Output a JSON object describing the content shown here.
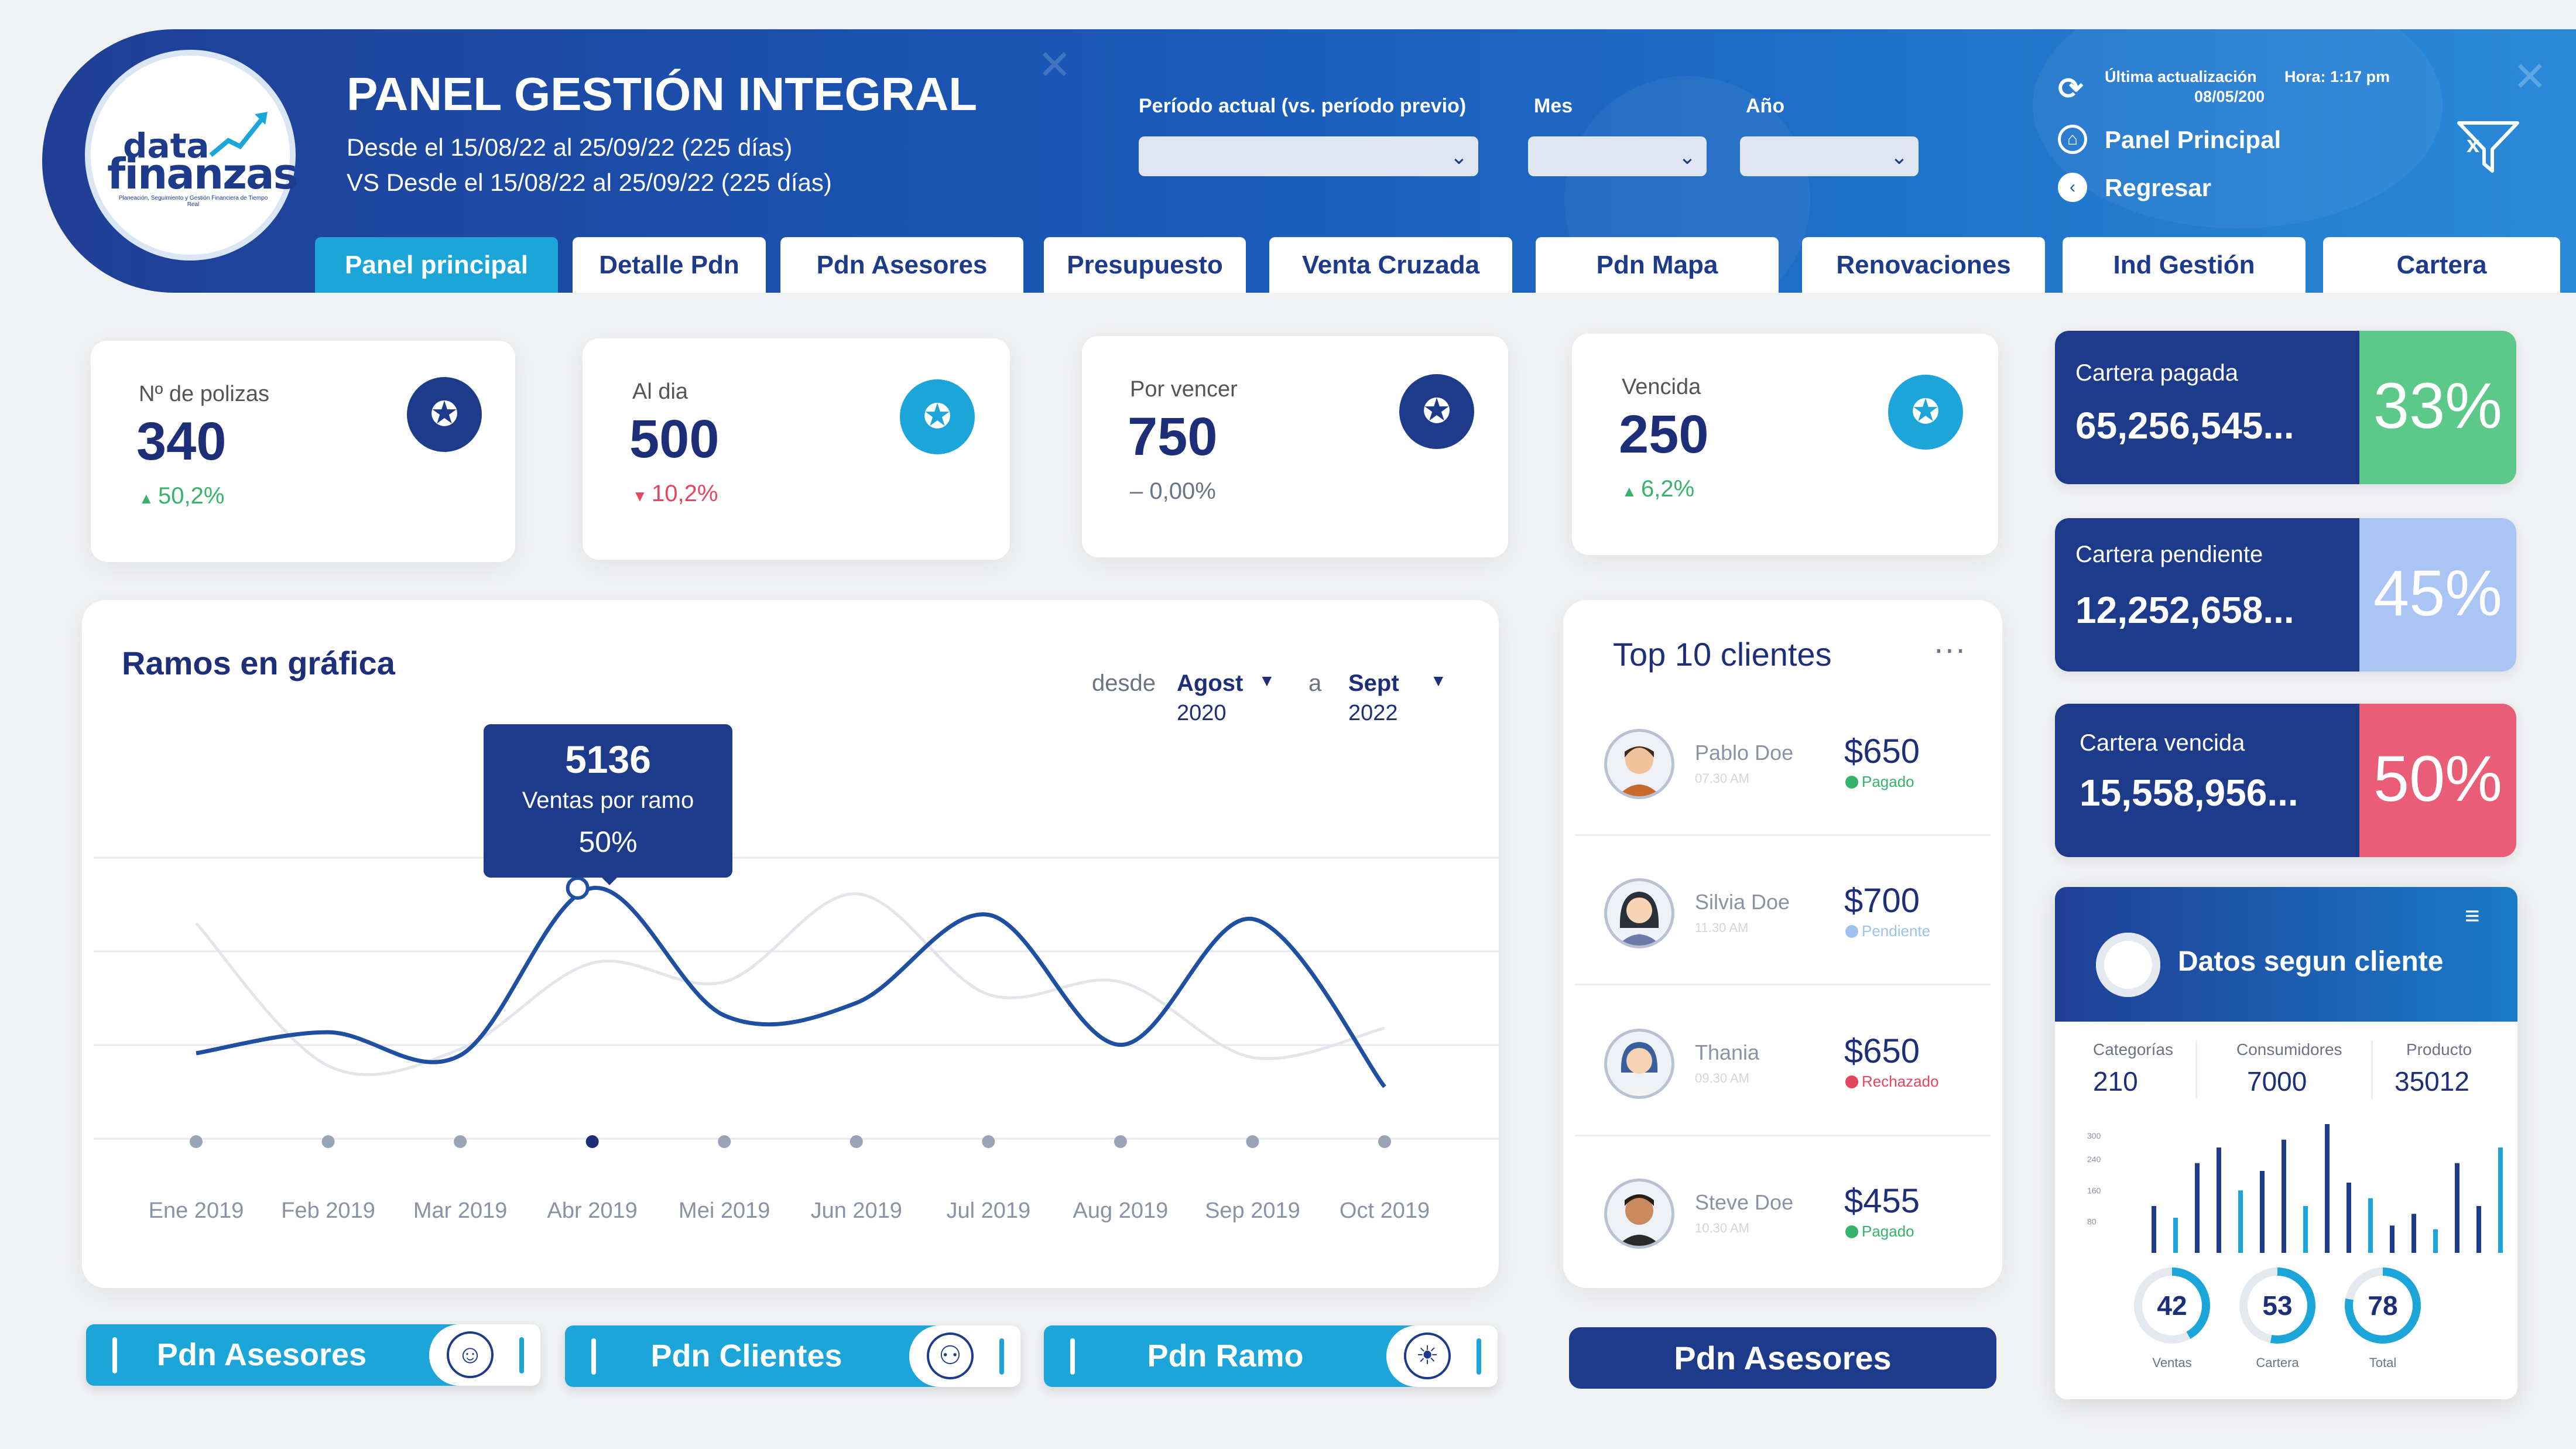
{
  "header": {
    "title": "PANEL GESTIÓN INTEGRAL",
    "range_current": "Desde el 15/08/22 al 25/09/22 (225 días)",
    "range_previous": "VS Desde el 15/08/22 al 25/09/22 (225 días)",
    "logo": {
      "line1": "data",
      "line2": "finanzas",
      "tagline": "Planeación, Seguimiento y Gestión Financiera de Tiempo Real"
    },
    "filters": {
      "periodo_label": "Período actual (vs. período previo)",
      "mes_label": "Mes",
      "anio_label": "Año"
    },
    "update_label": "Última actualización",
    "update_time": "Hora: 1:17 pm",
    "update_date": "08/05/200",
    "panel_principal": "Panel Principal",
    "regresar": "Regresar"
  },
  "tabs": [
    {
      "label": "Panel principal",
      "active": true
    },
    {
      "label": "Detalle Pdn"
    },
    {
      "label": "Pdn Asesores"
    },
    {
      "label": "Presupuesto"
    },
    {
      "label": "Venta Cruzada"
    },
    {
      "label": "Pdn Mapa"
    },
    {
      "label": "Renovaciones"
    },
    {
      "label": "Ind Gestión"
    },
    {
      "label": "Cartera"
    }
  ],
  "kpis": [
    {
      "label": "Nº de polizas",
      "value": "340",
      "change": "50,2%",
      "trend": "up",
      "icon": "award-icon",
      "icon_color": "#1e3a8a"
    },
    {
      "label": "Al dia",
      "value": "500",
      "change": "10,2%",
      "trend": "down",
      "icon": "award-icon",
      "icon_color": "#1ba5d8"
    },
    {
      "label": "Por vencer",
      "value": "750",
      "change": "0,00%",
      "trend": "flat",
      "icon": "award-icon",
      "icon_color": "#1e3a8a"
    },
    {
      "label": "Vencida",
      "value": "250",
      "change": "6,2%",
      "trend": "up",
      "icon": "award-icon",
      "icon_color": "#1ba5d8"
    }
  ],
  "cartera": [
    {
      "label": "Cartera pagada",
      "value": "65,256,545...",
      "pct": "33%",
      "color": "#5cc98a"
    },
    {
      "label": "Cartera pendiente",
      "value": "12,252,658...",
      "pct": "45%",
      "color": "#a9c4f5"
    },
    {
      "label": "Cartera vencida",
      "value": "15,558,956...",
      "pct": "50%",
      "color": "#ea5d77"
    }
  ],
  "chart": {
    "title": "Ramos en gráfica",
    "desde_label": "desde",
    "from_month": "Agost",
    "from_year": "2020",
    "a_label": "a",
    "to_month": "Sept",
    "to_year": "2022",
    "tooltip": {
      "value": "5136",
      "label": "Ventas por ramo",
      "pct": "50%"
    }
  },
  "chart_data": {
    "type": "line",
    "x": [
      "Ene 2019",
      "Feb 2019",
      "Mar 2019",
      "Abr 2019",
      "Mei 2019",
      "Jun 2019",
      "Jul 2019",
      "Aug 2019",
      "Sep 2019",
      "Oct 2019"
    ],
    "series": [
      {
        "values": [
          1200,
          1700,
          1150,
          5136,
          2100,
          2400,
          4500,
          1400,
          4400,
          400
        ],
        "color": "#1e4fa0"
      },
      {
        "values": [
          4300,
          900,
          1300,
          3350,
          2900,
          5000,
          2600,
          2900,
          1100,
          1800
        ],
        "color": "#e2e5ec"
      }
    ],
    "highlight_index": 3,
    "grid": true
  },
  "top_clients": {
    "title": "Top 10 clientes",
    "items": [
      {
        "name": "Pablo Doe",
        "time": "07.30 AM",
        "amount": "$650",
        "status": "Pagado",
        "status_color": "#37b36b"
      },
      {
        "name": "Silvia Doe",
        "time": "11.30 AM",
        "amount": "$700",
        "status": "Pendiente",
        "status_color": "#9ec1ef"
      },
      {
        "name": "Thania",
        "time": "09.30 AM",
        "amount": "$650",
        "status": "Rechazado",
        "status_color": "#e5455e"
      },
      {
        "name": "Steve Doe",
        "time": "10.30 AM",
        "amount": "$455",
        "status": "Pagado",
        "status_color": "#37b36b"
      }
    ]
  },
  "bottom_buttons": [
    {
      "label": "Pdn Asesores",
      "icon": "headset-user-icon"
    },
    {
      "label": "Pdn Clientes",
      "icon": "users-icon"
    },
    {
      "label": "Pdn Ramo",
      "icon": "lightbulb-icon"
    }
  ],
  "pdn_asesores_button": "Pdn Asesores",
  "datos": {
    "title": "Datos segun cliente",
    "stats": [
      {
        "label": "Categorías",
        "value": "210"
      },
      {
        "label": "Consumidores",
        "value": "7000"
      },
      {
        "label": "Producto",
        "value": "35012"
      }
    ],
    "mini_axis": [
      "300",
      "240",
      "160",
      "80"
    ],
    "mini_bars": [
      120,
      90,
      230,
      270,
      160,
      210,
      290,
      120,
      330,
      180,
      140,
      70,
      100,
      60,
      230,
      120,
      270
    ],
    "rings": [
      {
        "value": "42",
        "label": "Ventas",
        "pct": 42
      },
      {
        "value": "53",
        "label": "Cartera",
        "pct": 53
      },
      {
        "value": "78",
        "label": "Total",
        "pct": 78
      }
    ]
  }
}
